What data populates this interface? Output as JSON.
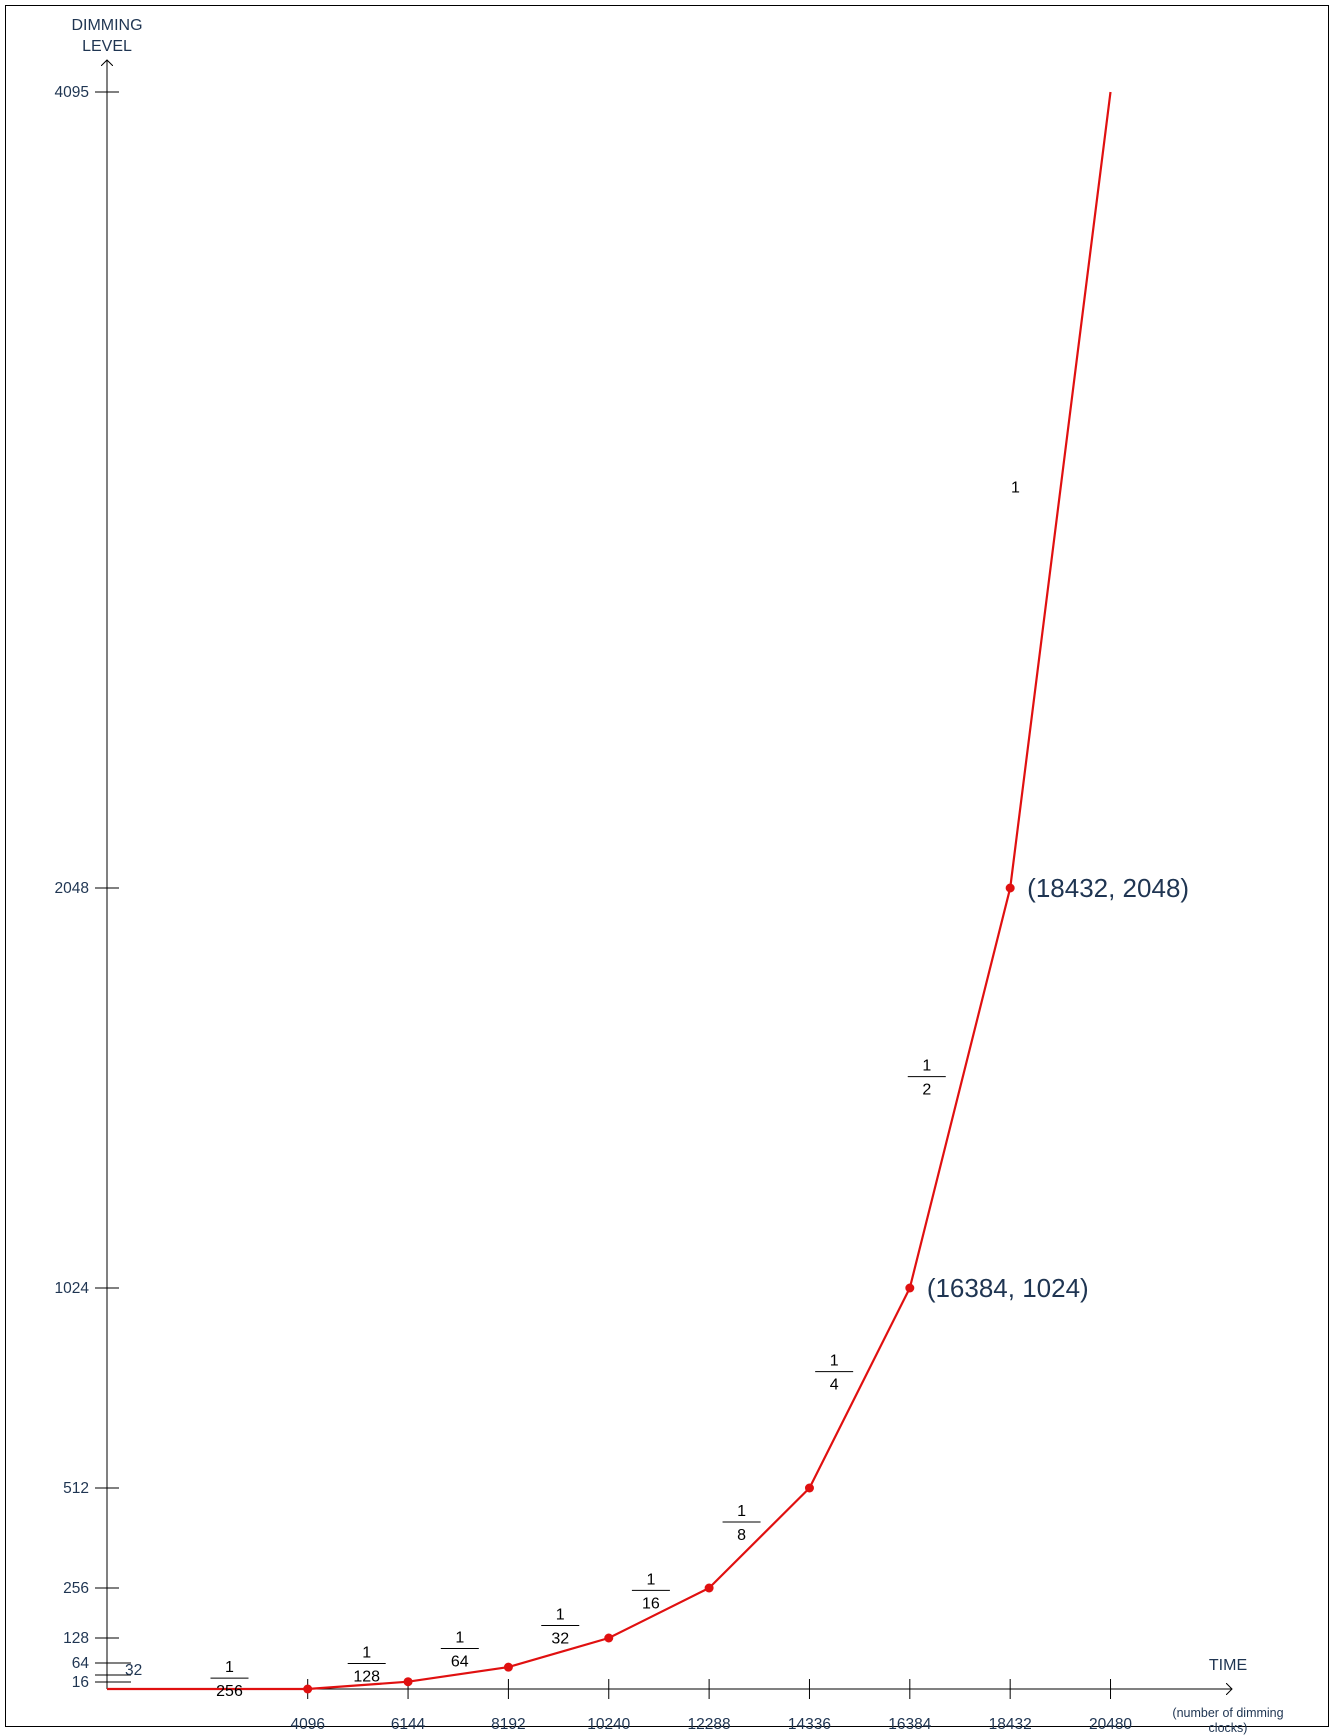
{
  "chart_data": {
    "type": "line",
    "title": "",
    "ylabel": [
      "DIMMING",
      "LEVEL"
    ],
    "xlabel": "TIME",
    "xlabel_note": [
      "(number of dimming",
      "clocks)"
    ],
    "x_ticks": [
      "4096",
      "6144",
      "8192",
      "10240",
      "12288",
      "14336",
      "16384",
      "18432",
      "20480"
    ],
    "y_ticks": [
      {
        "label": "16",
        "value": 16
      },
      {
        "label": "64",
        "value": 64
      },
      {
        "label": "128",
        "value": 128
      },
      {
        "label": "256",
        "value": 256
      },
      {
        "label": "512",
        "value": 512
      },
      {
        "label": "1024",
        "value": 1024
      },
      {
        "label": "2048",
        "value": 2048
      },
      {
        "label": "4095",
        "value": 4095
      }
    ],
    "y_extra_ticks": [
      {
        "label": "32",
        "value": 32
      }
    ],
    "xlim": [
      0,
      22528
    ],
    "ylim": [
      0,
      4095
    ],
    "grid": false,
    "series": [
      {
        "color": "#e01010",
        "points": [
          {
            "x": 0,
            "y": 0,
            "marker": false
          },
          {
            "x": 4096,
            "y": 16,
            "marker": true
          },
          {
            "x": 6144,
            "y": 32,
            "marker": true
          },
          {
            "x": 8192,
            "y": 64,
            "marker": true
          },
          {
            "x": 10240,
            "y": 128,
            "marker": true
          },
          {
            "x": 12288,
            "y": 256,
            "marker": true
          },
          {
            "x": 14336,
            "y": 512,
            "marker": true
          },
          {
            "x": 16384,
            "y": 1024,
            "marker": true
          },
          {
            "x": 18432,
            "y": 2048,
            "marker": true
          },
          {
            "x": 20480,
            "y": 4095,
            "marker": false
          }
        ]
      }
    ],
    "slope_labels": [
      {
        "num": "1",
        "den": "256",
        "x": 2500,
        "y": 40
      },
      {
        "num": "1",
        "den": "128",
        "x": 5300,
        "y": 72
      },
      {
        "num": "1",
        "den": "64",
        "x": 7200,
        "y": 105
      },
      {
        "num": "1",
        "den": "32",
        "x": 9250,
        "y": 160
      },
      {
        "num": "1",
        "den": "16",
        "x": 11100,
        "y": 250
      },
      {
        "num": "1",
        "den": "8",
        "x": 12950,
        "y": 425
      },
      {
        "num": "1",
        "den": "4",
        "x": 14840,
        "y": 810
      },
      {
        "num": "1",
        "den": "2",
        "x": 16730,
        "y": 1565
      },
      {
        "num": "1",
        "den": "",
        "x": 18540,
        "y": 3080
      }
    ],
    "annotations": [
      {
        "text": "(16384, 1024)",
        "x": 16384,
        "y": 1024
      },
      {
        "text": "(18432, 2048)",
        "x": 18432,
        "y": 2048
      }
    ]
  }
}
